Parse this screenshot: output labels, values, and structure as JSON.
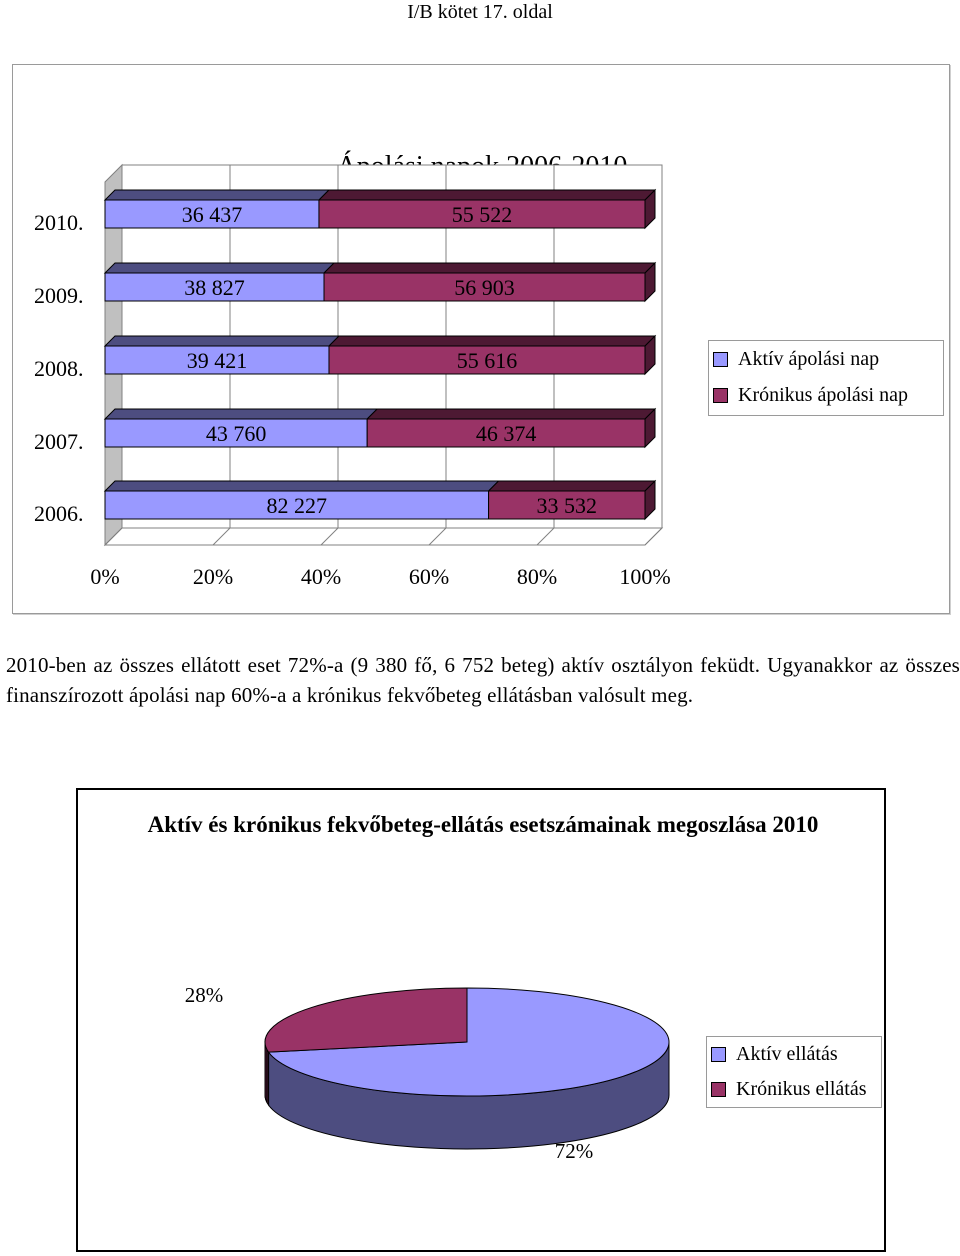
{
  "header": {
    "text": "I/B kötet 17. oldal"
  },
  "colors": {
    "aktiv": "#9999ff",
    "kronikus": "#993366",
    "aktiv_dark": "#4d4d80",
    "kronikus_dark": "#4d1933"
  },
  "chart_data": [
    {
      "type": "bar",
      "stacked": "percent",
      "orientation": "horizontal",
      "title": "Ápolási napok 2006-2010",
      "categories": [
        "2010.",
        "2009.",
        "2008.",
        "2007.",
        "2006."
      ],
      "series": [
        {
          "name": "Aktív ápolási nap",
          "values": [
            36437,
            38827,
            39421,
            43760,
            82227
          ],
          "labels": [
            "36 437",
            "38 827",
            "39 421",
            "43 760",
            "82 227"
          ]
        },
        {
          "name": "Krónikus ápolási nap",
          "values": [
            55522,
            56903,
            55616,
            46374,
            33532
          ],
          "labels": [
            "55 522",
            "56 903",
            "55 616",
            "46 374",
            "33 532"
          ]
        }
      ],
      "x_ticks": [
        "0%",
        "20%",
        "40%",
        "60%",
        "80%",
        "100%"
      ],
      "xlim": [
        0,
        100
      ],
      "grid": true,
      "legend": "right"
    },
    {
      "type": "pie",
      "title": "Aktív és krónikus fekvőbeteg-ellátás esetszámainak megoszlása 2010",
      "labels": [
        "Aktív ellátás",
        "Krónikus ellátás"
      ],
      "values": [
        72,
        28
      ],
      "value_labels": [
        "72%",
        "28%"
      ],
      "legend": "right"
    }
  ],
  "paragraph": "2010-ben az összes ellátott eset 72%-a (9 380 fő, 6 752 beteg) aktív osztályon feküdt. Ugyanakkor az összes finanszírozott ápolási nap 60%-a a krónikus fekvőbeteg ellátásban valósult meg."
}
